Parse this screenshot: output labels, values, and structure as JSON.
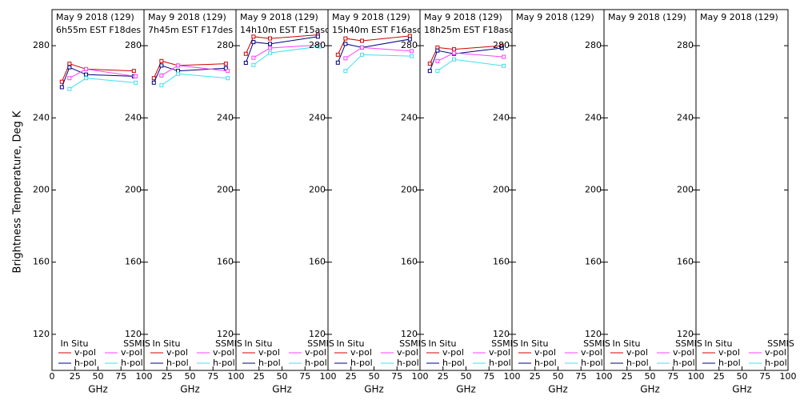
{
  "chart_data": [
    {
      "type": "line",
      "title": "May 9 2018 (129)",
      "subtitle": "6h55m EST F18des",
      "ylabel": "Brightness Temperature, Deg K",
      "xlabel": "GHz",
      "xlim": [
        0,
        100
      ],
      "xticks": [
        0,
        25,
        50,
        75,
        100
      ],
      "ylim": [
        100,
        300
      ],
      "yticks": [
        120,
        160,
        200,
        240,
        280
      ],
      "groups": [
        {
          "name": "In Situ",
          "series": [
            {
              "name": "v-pol",
              "color": "#d00000",
              "x": [
                10.7,
                19,
                37,
                89
              ],
              "values": [
                260,
                270,
                267,
                266
              ]
            },
            {
              "name": "h-pol",
              "color": "#000080",
              "x": [
                10.7,
                19,
                37,
                89
              ],
              "values": [
                257,
                268,
                264,
                263
              ]
            }
          ]
        },
        {
          "name": "SSMIS",
          "series": [
            {
              "name": "v-pol",
              "color": "#ff40ff",
              "x": [
                19,
                37,
                91
              ],
              "values": [
                262,
                267,
                263
              ]
            },
            {
              "name": "h-pol",
              "color": "#40e0f0",
              "x": [
                19,
                37,
                91
              ],
              "values": [
                256,
                262,
                259.5
              ]
            }
          ]
        }
      ]
    },
    {
      "type": "line",
      "title": "May 9 2018 (129)",
      "subtitle": "7h45m EST F17des",
      "xlabel": "GHz",
      "xlim": [
        0,
        100
      ],
      "xticks": [
        25,
        50,
        75,
        100
      ],
      "ylim": [
        100,
        300
      ],
      "yticks": [
        120,
        160,
        200,
        240,
        280
      ],
      "groups": [
        {
          "name": "In Situ",
          "series": [
            {
              "name": "v-pol",
              "color": "#d00000",
              "x": [
                10.7,
                19,
                37,
                89
              ],
              "values": [
                262,
                271.5,
                269,
                270
              ]
            },
            {
              "name": "h-pol",
              "color": "#000080",
              "x": [
                10.7,
                19,
                37,
                89
              ],
              "values": [
                259.5,
                269,
                266,
                267.5
              ]
            }
          ]
        },
        {
          "name": "SSMIS",
          "series": [
            {
              "name": "v-pol",
              "color": "#ff40ff",
              "x": [
                19,
                37,
                91
              ],
              "values": [
                263.5,
                269,
                266
              ]
            },
            {
              "name": "h-pol",
              "color": "#40e0f0",
              "x": [
                19,
                37,
                91
              ],
              "values": [
                258,
                264.4,
                262
              ]
            }
          ]
        }
      ]
    },
    {
      "type": "line",
      "title": "May 9 2018 (129)",
      "subtitle": "14h10m EST F15asc",
      "xlabel": "GHz",
      "xlim": [
        0,
        100
      ],
      "xticks": [
        25,
        50,
        75,
        100
      ],
      "ylim": [
        100,
        300
      ],
      "yticks": [
        120,
        160,
        200,
        240,
        280
      ],
      "groups": [
        {
          "name": "In Situ",
          "series": [
            {
              "name": "v-pol",
              "color": "#d00000",
              "x": [
                10.7,
                19,
                37,
                89
              ],
              "values": [
                275.5,
                285,
                284,
                286
              ]
            },
            {
              "name": "h-pol",
              "color": "#000080",
              "x": [
                10.7,
                19,
                37,
                89
              ],
              "values": [
                270.5,
                282,
                281,
                285
              ]
            }
          ]
        },
        {
          "name": "SSMIS",
          "series": [
            {
              "name": "v-pol",
              "color": "#ff40ff",
              "x": [
                19,
                37,
                91
              ],
              "values": [
                273.3,
                278.7,
                280.4
              ]
            },
            {
              "name": "h-pol",
              "color": "#40e0f0",
              "x": [
                19,
                37,
                91
              ],
              "values": [
                269.3,
                276,
                279.6
              ]
            }
          ]
        }
      ]
    },
    {
      "type": "line",
      "title": "May 9 2018 (129)",
      "subtitle": "15h40m EST F16asc",
      "xlabel": "GHz",
      "xlim": [
        0,
        100
      ],
      "xticks": [
        25,
        50,
        75,
        100
      ],
      "ylim": [
        100,
        300
      ],
      "yticks": [
        120,
        160,
        200,
        240,
        280
      ],
      "groups": [
        {
          "name": "In Situ",
          "series": [
            {
              "name": "v-pol",
              "color": "#d00000",
              "x": [
                10.7,
                19,
                37,
                89
              ],
              "values": [
                275,
                284,
                282.7,
                285.4
              ]
            },
            {
              "name": "h-pol",
              "color": "#000080",
              "x": [
                10.7,
                19,
                37,
                89
              ],
              "values": [
                270.6,
                281,
                279,
                283.6
              ]
            }
          ]
        },
        {
          "name": "SSMIS",
          "series": [
            {
              "name": "v-pol",
              "color": "#ff40ff",
              "x": [
                19,
                37,
                91
              ],
              "values": [
                273,
                279,
                277
              ]
            },
            {
              "name": "h-pol",
              "color": "#40e0f0",
              "x": [
                19,
                37,
                91
              ],
              "values": [
                266,
                275,
                274.2
              ]
            }
          ]
        }
      ]
    },
    {
      "type": "line",
      "title": "May 9 2018 (129)",
      "subtitle": "18h25m EST F18asc",
      "xlabel": "GHz",
      "xlim": [
        0,
        100
      ],
      "xticks": [
        25,
        50,
        75,
        100
      ],
      "ylim": [
        100,
        300
      ],
      "yticks": [
        120,
        160,
        200,
        240,
        280
      ],
      "groups": [
        {
          "name": "In Situ",
          "series": [
            {
              "name": "v-pol",
              "color": "#d00000",
              "x": [
                10.7,
                19,
                37,
                89
              ],
              "values": [
                270,
                279,
                278,
                280
              ]
            },
            {
              "name": "h-pol",
              "color": "#000080",
              "x": [
                10.7,
                19,
                37,
                89
              ],
              "values": [
                266,
                277.3,
                275.5,
                278.7
              ]
            }
          ]
        },
        {
          "name": "SSMIS",
          "series": [
            {
              "name": "v-pol",
              "color": "#ff40ff",
              "x": [
                19,
                37,
                91
              ],
              "values": [
                271.5,
                276,
                273.8
              ]
            },
            {
              "name": "h-pol",
              "color": "#40e0f0",
              "x": [
                19,
                37,
                91
              ],
              "values": [
                266,
                272.4,
                268.8
              ]
            }
          ]
        }
      ]
    },
    {
      "type": "line",
      "title": "May 9 2018 (129)",
      "xlabel": "GHz",
      "xlim": [
        0,
        100
      ],
      "xticks": [
        25,
        50,
        75,
        100
      ],
      "ylim": [
        100,
        300
      ],
      "yticks": [
        120,
        160,
        200,
        240,
        280
      ],
      "groups": [
        {
          "name": "In Situ",
          "series": [
            {
              "name": "v-pol",
              "color": "#d00000",
              "x": [],
              "values": []
            },
            {
              "name": "h-pol",
              "color": "#000080",
              "x": [],
              "values": []
            }
          ]
        },
        {
          "name": "SSMIS",
          "series": [
            {
              "name": "v-pol",
              "color": "#ff40ff",
              "x": [],
              "values": []
            },
            {
              "name": "h-pol",
              "color": "#40e0f0",
              "x": [],
              "values": []
            }
          ]
        }
      ]
    },
    {
      "type": "line",
      "title": "May 9 2018 (129)",
      "xlabel": "GHz",
      "xlim": [
        0,
        100
      ],
      "xticks": [
        25,
        50,
        75,
        100
      ],
      "ylim": [
        100,
        300
      ],
      "yticks": [
        120,
        160,
        200,
        240,
        280
      ],
      "groups": [
        {
          "name": "In Situ",
          "series": [
            {
              "name": "v-pol",
              "color": "#d00000",
              "x": [],
              "values": []
            },
            {
              "name": "h-pol",
              "color": "#000080",
              "x": [],
              "values": []
            }
          ]
        },
        {
          "name": "SSMIS",
          "series": [
            {
              "name": "v-pol",
              "color": "#ff40ff",
              "x": [],
              "values": []
            },
            {
              "name": "h-pol",
              "color": "#40e0f0",
              "x": [],
              "values": []
            }
          ]
        }
      ]
    },
    {
      "type": "line",
      "title": "May 9 2018 (129)",
      "xlabel": "GHz",
      "xlim": [
        0,
        100
      ],
      "xticks": [
        25,
        50,
        75,
        100
      ],
      "ylim": [
        100,
        300
      ],
      "yticks": [
        120,
        160,
        200,
        240,
        280
      ],
      "groups": [
        {
          "name": "In Situ",
          "series": [
            {
              "name": "v-pol",
              "color": "#d00000",
              "x": [],
              "values": []
            },
            {
              "name": "h-pol",
              "color": "#000080",
              "x": [],
              "values": []
            }
          ]
        },
        {
          "name": "SSMIS",
          "series": [
            {
              "name": "v-pol",
              "color": "#ff40ff",
              "x": [],
              "values": []
            },
            {
              "name": "h-pol",
              "color": "#40e0f0",
              "x": [],
              "values": []
            }
          ]
        }
      ]
    }
  ]
}
